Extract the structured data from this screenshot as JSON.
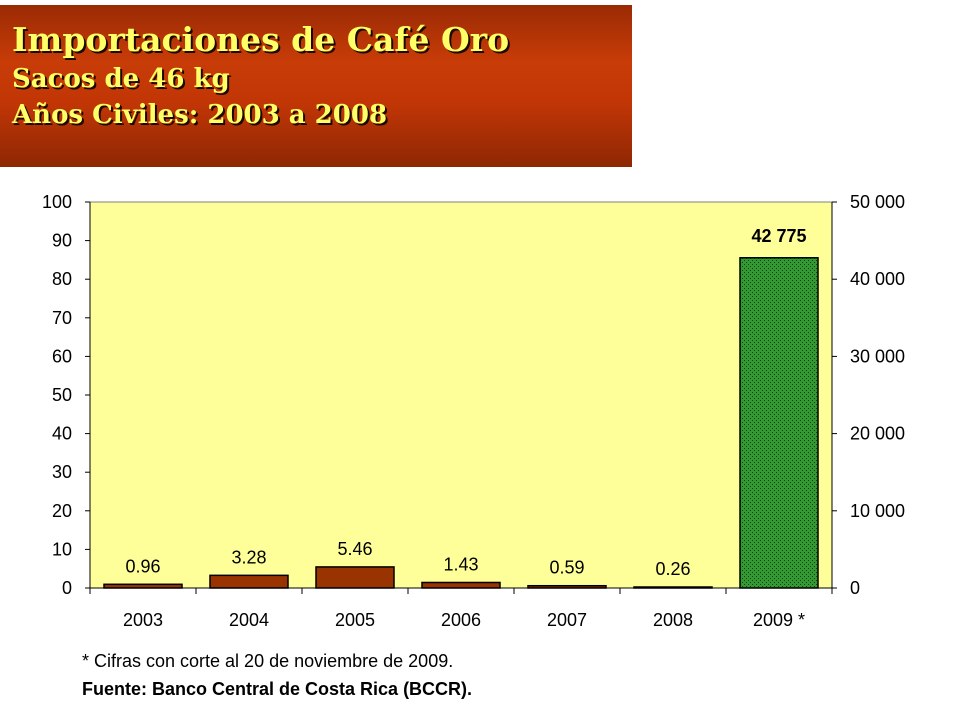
{
  "header": {
    "title": "Importaciones de Café Oro",
    "subtitle": "Sacos de 46 kg",
    "period": "Años Civiles: 2003 a 2008"
  },
  "footnotes": {
    "note": "* Cifras con corte al 20 de noviembre de 2009.",
    "source": "Fuente: Banco Central de Costa Rica (BCCR)."
  },
  "colors": {
    "plot_background": "#ffff99",
    "bar_left": "#993300",
    "bar_right": "#339933"
  },
  "chart_data": {
    "type": "bar",
    "categories": [
      "2003",
      "2004",
      "2005",
      "2006",
      "2007",
      "2008",
      "2009 *"
    ],
    "series": [
      {
        "axis": "left",
        "values": [
          0.96,
          3.28,
          5.46,
          1.43,
          0.59,
          0.26,
          null
        ],
        "labels": [
          "0.96",
          "3.28",
          "5.46",
          "1.43",
          "0.59",
          "0.26",
          null
        ]
      },
      {
        "axis": "right",
        "values": [
          null,
          null,
          null,
          null,
          null,
          null,
          42775
        ],
        "labels": [
          null,
          null,
          null,
          null,
          null,
          null,
          "42 775"
        ]
      }
    ],
    "y_left": {
      "ylim": [
        0,
        100
      ],
      "ticks": [
        "0",
        "10",
        "20",
        "30",
        "40",
        "50",
        "60",
        "70",
        "80",
        "90",
        "100"
      ]
    },
    "y_right": {
      "ylim": [
        0,
        50000
      ],
      "ticks": [
        "0",
        "10 000",
        "20 000",
        "30 000",
        "40 000",
        "50 000"
      ]
    },
    "grid": false,
    "legend": "none"
  }
}
